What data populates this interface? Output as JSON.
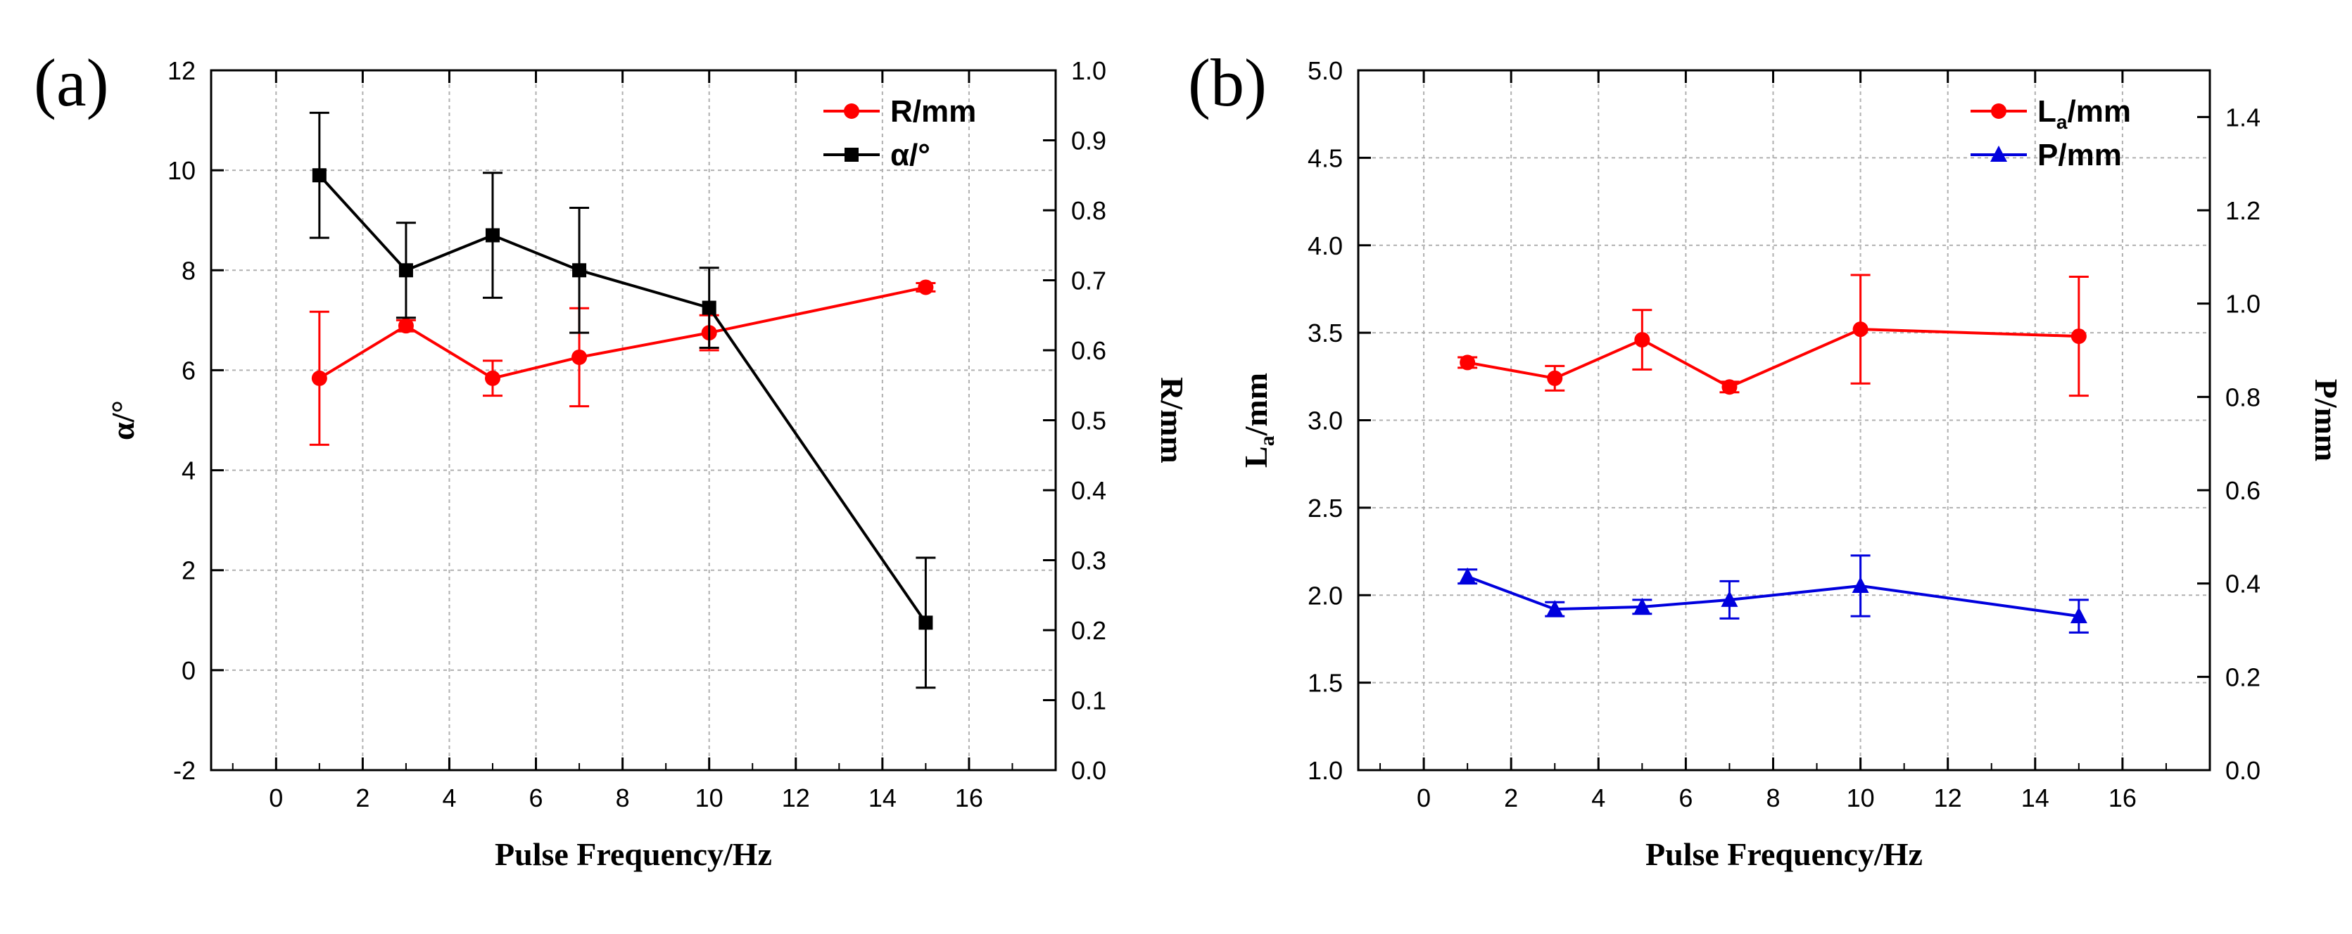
{
  "chart_data": [
    {
      "type": "line",
      "panel_label": "(a)",
      "xlabel": "Pulse Frequency/Hz",
      "xlim": [
        -1.5,
        18
      ],
      "xticks": [
        0,
        2,
        4,
        6,
        8,
        10,
        12,
        14,
        16
      ],
      "left_axis": {
        "label_main": "α/°",
        "label_sub": "",
        "ylim": [
          -2,
          12
        ],
        "ticks": [
          -2,
          0,
          2,
          4,
          6,
          8,
          10,
          12
        ],
        "decimals": 0
      },
      "right_axis": {
        "label_main": "R/mm",
        "label_sub": "",
        "ylim": [
          0.0,
          1.0
        ],
        "ticks": [
          0.0,
          0.1,
          0.2,
          0.3,
          0.4,
          0.5,
          0.6,
          0.7,
          0.8,
          0.9,
          1.0
        ],
        "decimals": 1
      },
      "grid": true,
      "legend_position": "top-right",
      "series": [
        {
          "name_main": "R/mm",
          "name_sub": "",
          "axis": "right",
          "color": "#ff0000",
          "marker": "circle",
          "x": [
            1,
            3,
            5,
            7,
            10,
            15
          ],
          "y": [
            0.56,
            0.635,
            0.56,
            0.59,
            0.625,
            0.69
          ],
          "err": [
            0.095,
            0.008,
            0.025,
            0.07,
            0.025,
            0.006
          ]
        },
        {
          "name_main": "α/°",
          "name_sub": "",
          "axis": "left",
          "color": "#000000",
          "marker": "square",
          "x": [
            1,
            3,
            5,
            7,
            10,
            15
          ],
          "y": [
            9.9,
            8.0,
            8.7,
            8.0,
            7.25,
            0.95
          ],
          "err": [
            1.25,
            0.95,
            1.25,
            1.25,
            0.8,
            1.3
          ]
        }
      ]
    },
    {
      "type": "line",
      "panel_label": "(b)",
      "xlabel": "Pulse Frequency/Hz",
      "xlim": [
        -1.5,
        18
      ],
      "xticks": [
        0,
        2,
        4,
        6,
        8,
        10,
        12,
        14,
        16
      ],
      "left_axis": {
        "label_main": "L",
        "label_sub": "a",
        "label_tail": "/mm",
        "ylim": [
          1.0,
          5.0
        ],
        "ticks": [
          1.0,
          1.5,
          2.0,
          2.5,
          3.0,
          3.5,
          4.0,
          4.5,
          5.0
        ],
        "decimals": 1
      },
      "right_axis": {
        "label_main": "P/mm",
        "label_sub": "",
        "ylim": [
          0.0,
          1.5
        ],
        "ticks": [
          0.0,
          0.2,
          0.4,
          0.6,
          0.8,
          1.0,
          1.2,
          1.4
        ],
        "decimals": 1
      },
      "grid": true,
      "legend_position": "top-right",
      "series": [
        {
          "name_main": "L",
          "name_sub": "a",
          "name_tail": "/mm",
          "axis": "left",
          "color": "#ff0000",
          "marker": "circle",
          "x": [
            1,
            3,
            5,
            7,
            10,
            15
          ],
          "y": [
            3.33,
            3.24,
            3.46,
            3.19,
            3.52,
            3.48
          ],
          "err": [
            0.03,
            0.07,
            0.17,
            0.03,
            0.31,
            0.34
          ]
        },
        {
          "name_main": "P/mm",
          "name_sub": "",
          "axis": "right",
          "color": "#0000dd",
          "marker": "triangle",
          "x": [
            1,
            3,
            5,
            7,
            10,
            15
          ],
          "y": [
            0.415,
            0.345,
            0.35,
            0.365,
            0.395,
            0.33
          ],
          "err": [
            0.015,
            0.015,
            0.015,
            0.04,
            0.065,
            0.035
          ]
        }
      ]
    }
  ]
}
